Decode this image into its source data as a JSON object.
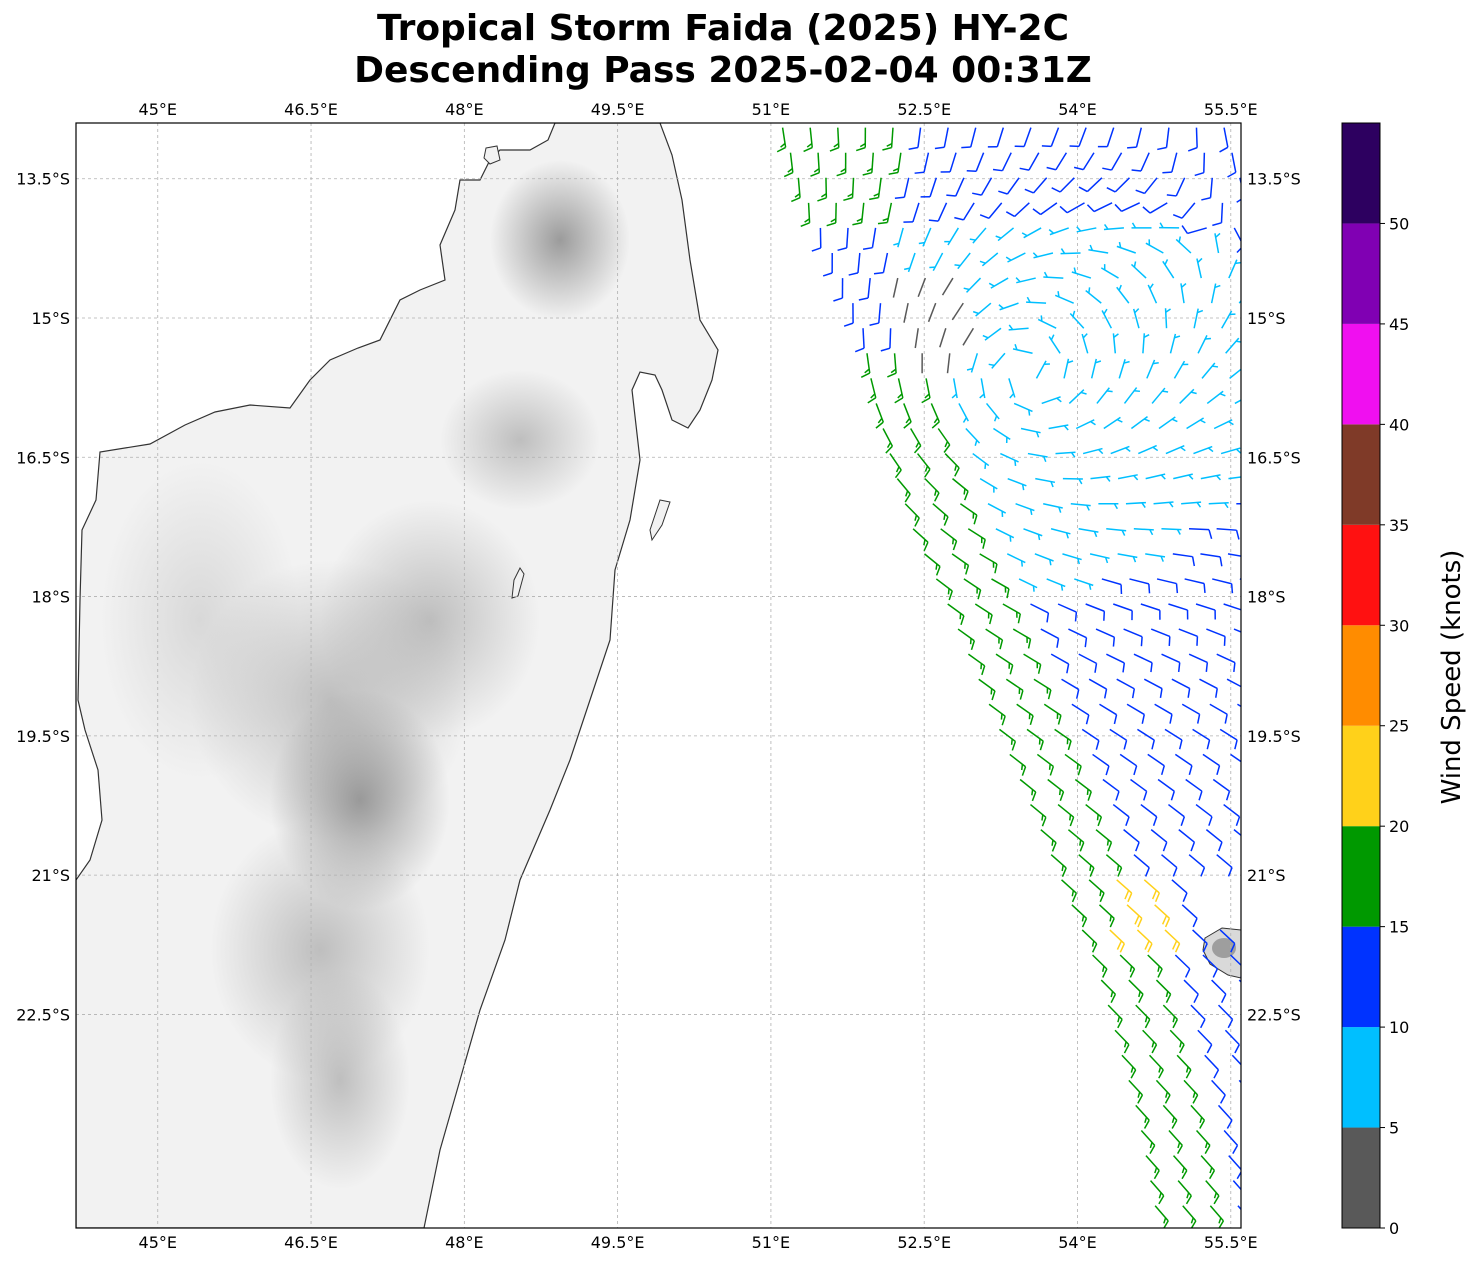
{
  "title": {
    "line1": "Tropical Storm Faida (2025) HY-2C",
    "line2": "Descending Pass 2025-02-04 00:31Z"
  },
  "map": {
    "lon_range": [
      44.2,
      55.6
    ],
    "lat_range": [
      -24.8,
      -12.9
    ],
    "lon_ticks": [
      {
        "value": 45.0,
        "label": "45°E"
      },
      {
        "value": 46.5,
        "label": "46.5°E"
      },
      {
        "value": 48.0,
        "label": "48°E"
      },
      {
        "value": 49.5,
        "label": "49.5°E"
      },
      {
        "value": 51.0,
        "label": "51°E"
      },
      {
        "value": 52.5,
        "label": "52.5°E"
      },
      {
        "value": 54.0,
        "label": "54°E"
      },
      {
        "value": 55.5,
        "label": "55.5°E"
      }
    ],
    "lat_ticks": [
      {
        "value": -13.5,
        "label": "13.5°S"
      },
      {
        "value": -15.0,
        "label": "15°S"
      },
      {
        "value": -16.5,
        "label": "16.5°S"
      },
      {
        "value": -18.0,
        "label": "18°S"
      },
      {
        "value": -19.5,
        "label": "19.5°S"
      },
      {
        "value": -21.0,
        "label": "21°S"
      },
      {
        "value": -22.5,
        "label": "22.5°S"
      }
    ],
    "gridlines": true,
    "land_shading": "grayscale terrain",
    "colors": {
      "coastline": "#333333",
      "grid": "#b0b0b0",
      "terrain_dark": "#8a8a8a",
      "terrain_light": "#f4f4f4"
    }
  },
  "colorbar": {
    "label": "Wind Speed (knots)",
    "tick_labels": [
      "0",
      "5",
      "10",
      "15",
      "20",
      "25",
      "30",
      "35",
      "40",
      "45",
      "50"
    ],
    "bins": [
      {
        "min": 0,
        "max": 5,
        "color": "#595959"
      },
      {
        "min": 5,
        "max": 10,
        "color": "#00bfff"
      },
      {
        "min": 10,
        "max": 15,
        "color": "#0033ff"
      },
      {
        "min": 15,
        "max": 20,
        "color": "#009900"
      },
      {
        "min": 20,
        "max": 25,
        "color": "#ffd11a"
      },
      {
        "min": 25,
        "max": 30,
        "color": "#ff8c00"
      },
      {
        "min": 30,
        "max": 35,
        "color": "#ff1111"
      },
      {
        "min": 35,
        "max": 40,
        "color": "#7f3a28"
      },
      {
        "min": 40,
        "max": 45,
        "color": "#f00ff0"
      },
      {
        "min": 45,
        "max": 50,
        "color": "#8000b3"
      },
      {
        "min": 50,
        "max": 55,
        "color": "#2d0060"
      }
    ]
  },
  "chart_data": {
    "type": "wind-barb map",
    "swath_edge_west": [
      [
        51.1,
        -12.9
      ],
      [
        51.3,
        -13.6
      ],
      [
        51.6,
        -14.3
      ],
      [
        51.9,
        -15.1
      ],
      [
        52.0,
        -15.8
      ],
      [
        52.2,
        -16.6
      ],
      [
        52.4,
        -17.3
      ],
      [
        52.7,
        -18.0
      ],
      [
        53.0,
        -18.8
      ],
      [
        53.3,
        -19.6
      ],
      [
        53.6,
        -20.4
      ],
      [
        53.9,
        -21.2
      ],
      [
        54.2,
        -22.0
      ],
      [
        54.4,
        -22.8
      ],
      [
        54.6,
        -23.6
      ],
      [
        54.8,
        -24.8
      ]
    ],
    "swath_edge_east": [
      55.6
    ],
    "speed_regions": [
      {
        "name": "light-core",
        "lon": [
          51.7,
          53.0
        ],
        "lat": [
          -15.4,
          -14.5
        ],
        "speed": 3
      },
      {
        "name": "inner-cyan",
        "lon": [
          52.2,
          55.6
        ],
        "lat": [
          -18.0,
          -13.8
        ],
        "speed": 8
      },
      {
        "name": "outer-blue",
        "lon": [
          51.0,
          55.6
        ],
        "lat": [
          -24.8,
          -12.9
        ],
        "speed": 12
      },
      {
        "name": "green-band",
        "width_deg": 0.55,
        "speed": 17
      },
      {
        "name": "yellow-patch",
        "lon": [
          54.3,
          54.9
        ],
        "lat": [
          -21.8,
          -21.0
        ],
        "speed": 22
      },
      {
        "name": "northwest-green",
        "lon": [
          51.0,
          52.3
        ],
        "lat": [
          -13.8,
          -12.9
        ],
        "speed": 16
      }
    ],
    "circulation_center": {
      "lon": 53.5,
      "lat": -15.6
    },
    "sample_barbs_deg_step": 0.27
  }
}
